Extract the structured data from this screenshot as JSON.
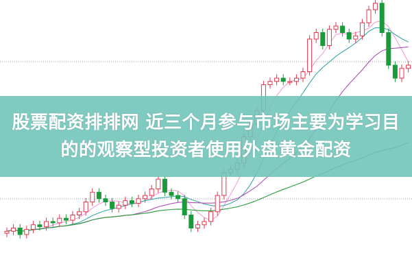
{
  "banner": {
    "line1": "股票配资排排网 近三个月参与市场主要为学习目",
    "line2": "的的观察型投资者使用外盘黄金配资"
  },
  "colors": {
    "up": "#e8334a",
    "down": "#1a9a3a",
    "ma5": "#f0a0d8",
    "ma10": "#3aa8a8",
    "ma20": "#b050b8",
    "ma60": "#2a9a3a",
    "grid": "#999999",
    "banner": "#6ec4b8"
  },
  "chart_data": {
    "type": "candlestick",
    "grid": true,
    "moving_averages": [
      5,
      10,
      20,
      60
    ],
    "open": [
      42,
      45,
      50,
      40,
      48,
      55,
      52,
      60,
      58,
      65,
      62,
      70,
      75,
      90,
      105,
      95,
      90,
      80,
      85,
      92,
      88,
      95,
      100,
      110,
      125,
      105,
      100,
      95,
      70,
      50,
      55,
      60,
      75,
      100,
      135,
      140,
      150,
      190,
      210,
      230,
      270,
      275,
      280,
      275,
      275,
      280,
      290,
      340,
      350,
      330,
      355,
      360,
      350,
      340,
      345,
      365,
      385,
      395,
      350,
      300,
      280,
      295
    ],
    "high": [
      51,
      56,
      56,
      54,
      61,
      61,
      66,
      66,
      71,
      71,
      76,
      81,
      96,
      111,
      111,
      101,
      96,
      91,
      98,
      98,
      101,
      106,
      116,
      131,
      131,
      111,
      106,
      101,
      76,
      61,
      66,
      81,
      106,
      141,
      146,
      156,
      196,
      216,
      236,
      276,
      281,
      286,
      286,
      281,
      286,
      296,
      346,
      356,
      356,
      361,
      366,
      366,
      356,
      351,
      371,
      391,
      401,
      401,
      356,
      306,
      301,
      306
    ],
    "low": [
      36,
      39,
      34,
      34,
      42,
      46,
      46,
      52,
      52,
      56,
      56,
      64,
      69,
      84,
      89,
      84,
      74,
      74,
      79,
      82,
      82,
      89,
      94,
      104,
      99,
      94,
      89,
      64,
      44,
      44,
      49,
      54,
      69,
      94,
      129,
      134,
      144,
      184,
      204,
      224,
      264,
      269,
      269,
      269,
      269,
      274,
      284,
      334,
      324,
      324,
      349,
      344,
      334,
      334,
      339,
      359,
      379,
      344,
      294,
      274,
      274,
      289
    ],
    "close": [
      45,
      50,
      40,
      48,
      55,
      52,
      60,
      58,
      65,
      62,
      70,
      75,
      90,
      105,
      95,
      90,
      80,
      85,
      92,
      88,
      95,
      100,
      110,
      125,
      105,
      100,
      95,
      70,
      50,
      55,
      60,
      75,
      100,
      135,
      140,
      150,
      190,
      210,
      230,
      270,
      275,
      280,
      275,
      275,
      280,
      290,
      340,
      350,
      330,
      355,
      360,
      350,
      340,
      345,
      365,
      385,
      395,
      350,
      300,
      280,
      295,
      300
    ]
  }
}
